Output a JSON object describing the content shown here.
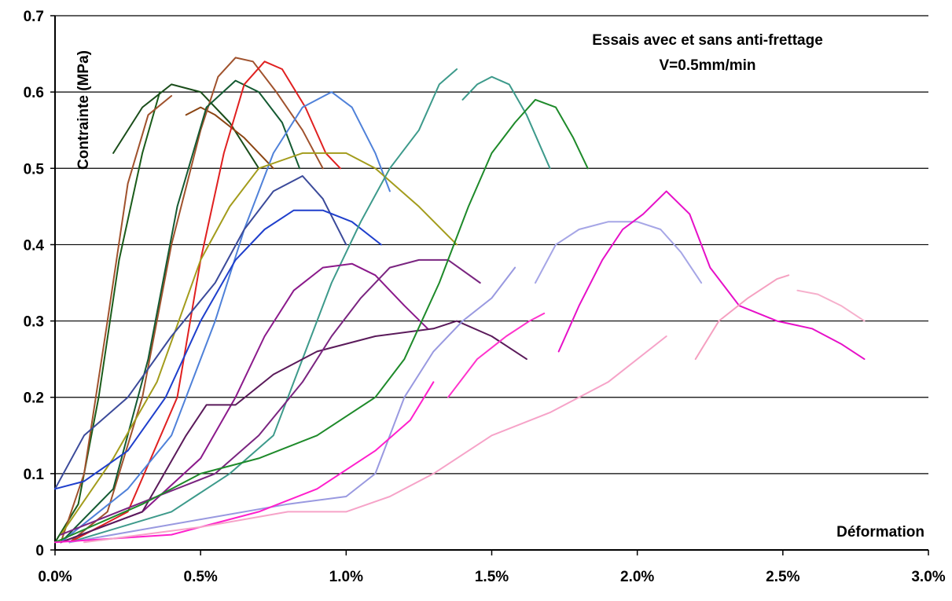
{
  "chart_data": {
    "type": "line",
    "title": "Essais avec et sans anti-frettage",
    "subtitle": "V=0.5mm/min",
    "xlabel": "Déformation",
    "ylabel": "Contrainte (MPa)",
    "xlim": [
      0.0,
      3.0
    ],
    "ylim": [
      0.0,
      0.7
    ],
    "x_unit": "%",
    "grid": "horizontal",
    "legend": "none",
    "x_ticks": [
      {
        "value": 0.0,
        "label": "0.0%"
      },
      {
        "value": 0.5,
        "label": "0.5%"
      },
      {
        "value": 1.0,
        "label": "1.0%"
      },
      {
        "value": 1.5,
        "label": "1.5%"
      },
      {
        "value": 2.0,
        "label": "2.0%"
      },
      {
        "value": 2.5,
        "label": "2.5%"
      },
      {
        "value": 3.0,
        "label": "3.0%"
      }
    ],
    "y_ticks": [
      {
        "value": 0.0,
        "label": "0"
      },
      {
        "value": 0.1,
        "label": "0.1"
      },
      {
        "value": 0.2,
        "label": "0.2"
      },
      {
        "value": 0.3,
        "label": "0.3"
      },
      {
        "value": 0.4,
        "label": "0.4"
      },
      {
        "value": 0.5,
        "label": "0.5"
      },
      {
        "value": 0.6,
        "label": "0.6"
      },
      {
        "value": 0.7,
        "label": "0.7"
      }
    ],
    "series": [
      {
        "color": "#1a5c1a",
        "points": [
          [
            0,
            0.01
          ],
          [
            0.08,
            0.06
          ],
          [
            0.15,
            0.2
          ],
          [
            0.22,
            0.38
          ],
          [
            0.3,
            0.52
          ],
          [
            0.36,
            0.6
          ]
        ]
      },
      {
        "color": "#1a4d1a",
        "points": [
          [
            0.2,
            0.52
          ],
          [
            0.3,
            0.58
          ],
          [
            0.4,
            0.61
          ],
          [
            0.5,
            0.6
          ],
          [
            0.6,
            0.56
          ],
          [
            0.7,
            0.5
          ]
        ]
      },
      {
        "color": "#a0522d",
        "points": [
          [
            0.02,
            0.01
          ],
          [
            0.1,
            0.1
          ],
          [
            0.18,
            0.3
          ],
          [
            0.25,
            0.48
          ],
          [
            0.32,
            0.57
          ],
          [
            0.4,
            0.595
          ]
        ]
      },
      {
        "color": "#8b4513",
        "points": [
          [
            0.45,
            0.57
          ],
          [
            0.5,
            0.58
          ],
          [
            0.55,
            0.57
          ],
          [
            0.65,
            0.54
          ],
          [
            0.75,
            0.5
          ]
        ]
      },
      {
        "color": "#a0522d",
        "points": [
          [
            0.05,
            0.01
          ],
          [
            0.18,
            0.05
          ],
          [
            0.3,
            0.2
          ],
          [
            0.4,
            0.4
          ],
          [
            0.5,
            0.55
          ],
          [
            0.56,
            0.62
          ],
          [
            0.62,
            0.645
          ],
          [
            0.68,
            0.64
          ],
          [
            0.76,
            0.6
          ],
          [
            0.85,
            0.55
          ],
          [
            0.92,
            0.5
          ]
        ]
      },
      {
        "color": "#145a32",
        "points": [
          [
            0.02,
            0.01
          ],
          [
            0.2,
            0.08
          ],
          [
            0.32,
            0.25
          ],
          [
            0.42,
            0.45
          ],
          [
            0.52,
            0.58
          ],
          [
            0.62,
            0.615
          ],
          [
            0.7,
            0.6
          ],
          [
            0.78,
            0.56
          ],
          [
            0.84,
            0.5
          ]
        ]
      },
      {
        "color": "#e02020",
        "points": [
          [
            0.05,
            0.01
          ],
          [
            0.25,
            0.05
          ],
          [
            0.42,
            0.2
          ],
          [
            0.5,
            0.38
          ],
          [
            0.58,
            0.52
          ],
          [
            0.65,
            0.61
          ],
          [
            0.72,
            0.64
          ],
          [
            0.78,
            0.63
          ],
          [
            0.86,
            0.58
          ],
          [
            0.93,
            0.52
          ],
          [
            0.98,
            0.5
          ]
        ]
      },
      {
        "color": "#4f81d9",
        "points": [
          [
            0.02,
            0.01
          ],
          [
            0.25,
            0.08
          ],
          [
            0.4,
            0.15
          ],
          [
            0.55,
            0.3
          ],
          [
            0.65,
            0.42
          ],
          [
            0.75,
            0.52
          ],
          [
            0.85,
            0.58
          ],
          [
            0.95,
            0.6
          ],
          [
            1.02,
            0.58
          ],
          [
            1.1,
            0.52
          ],
          [
            1.15,
            0.47
          ]
        ]
      },
      {
        "color": "#a39c1c",
        "points": [
          [
            0.02,
            0.02
          ],
          [
            0.2,
            0.12
          ],
          [
            0.35,
            0.22
          ],
          [
            0.5,
            0.38
          ],
          [
            0.6,
            0.45
          ],
          [
            0.7,
            0.5
          ],
          [
            0.85,
            0.52
          ],
          [
            1.0,
            0.52
          ],
          [
            1.1,
            0.5
          ],
          [
            1.25,
            0.45
          ],
          [
            1.38,
            0.4
          ]
        ]
      },
      {
        "color": "#3b4a9a",
        "points": [
          [
            0.0,
            0.08
          ],
          [
            0.1,
            0.15
          ],
          [
            0.25,
            0.2
          ],
          [
            0.4,
            0.28
          ],
          [
            0.55,
            0.35
          ],
          [
            0.65,
            0.42
          ],
          [
            0.75,
            0.47
          ],
          [
            0.85,
            0.49
          ],
          [
            0.92,
            0.46
          ],
          [
            1.0,
            0.4
          ]
        ]
      },
      {
        "color": "#1f3fcc",
        "points": [
          [
            0.0,
            0.08
          ],
          [
            0.1,
            0.09
          ],
          [
            0.25,
            0.13
          ],
          [
            0.38,
            0.2
          ],
          [
            0.5,
            0.3
          ],
          [
            0.62,
            0.38
          ],
          [
            0.72,
            0.42
          ],
          [
            0.82,
            0.445
          ],
          [
            0.92,
            0.445
          ],
          [
            1.02,
            0.43
          ],
          [
            1.12,
            0.4
          ]
        ]
      },
      {
        "color": "#3d9a8b",
        "points": [
          [
            0.05,
            0.01
          ],
          [
            0.4,
            0.05
          ],
          [
            0.6,
            0.1
          ],
          [
            0.75,
            0.15
          ],
          [
            0.85,
            0.25
          ],
          [
            0.95,
            0.35
          ],
          [
            1.05,
            0.43
          ],
          [
            1.15,
            0.5
          ],
          [
            1.25,
            0.55
          ],
          [
            1.32,
            0.61
          ],
          [
            1.38,
            0.63
          ]
        ]
      },
      {
        "color": "#3d9a8b",
        "points": [
          [
            1.4,
            0.59
          ],
          [
            1.45,
            0.61
          ],
          [
            1.5,
            0.62
          ],
          [
            1.56,
            0.61
          ],
          [
            1.62,
            0.57
          ],
          [
            1.7,
            0.5
          ]
        ]
      },
      {
        "color": "#8b1a8b",
        "points": [
          [
            0.02,
            0.01
          ],
          [
            0.3,
            0.05
          ],
          [
            0.5,
            0.12
          ],
          [
            0.62,
            0.2
          ],
          [
            0.72,
            0.28
          ],
          [
            0.82,
            0.34
          ],
          [
            0.92,
            0.37
          ],
          [
            1.02,
            0.375
          ],
          [
            1.1,
            0.36
          ],
          [
            1.2,
            0.32
          ],
          [
            1.28,
            0.29
          ]
        ]
      },
      {
        "color": "#5a1a5a",
        "points": [
          [
            0.02,
            0.01
          ],
          [
            0.3,
            0.05
          ],
          [
            0.45,
            0.15
          ],
          [
            0.52,
            0.19
          ],
          [
            0.62,
            0.19
          ],
          [
            0.75,
            0.23
          ],
          [
            0.9,
            0.26
          ],
          [
            1.1,
            0.28
          ],
          [
            1.3,
            0.29
          ],
          [
            1.38,
            0.3
          ],
          [
            1.5,
            0.28
          ],
          [
            1.62,
            0.25
          ]
        ]
      },
      {
        "color": "#7a2580",
        "points": [
          [
            0.02,
            0.02
          ],
          [
            0.35,
            0.07
          ],
          [
            0.55,
            0.1
          ],
          [
            0.7,
            0.15
          ],
          [
            0.85,
            0.22
          ],
          [
            0.95,
            0.28
          ],
          [
            1.05,
            0.33
          ],
          [
            1.15,
            0.37
          ],
          [
            1.25,
            0.38
          ],
          [
            1.35,
            0.38
          ],
          [
            1.46,
            0.35
          ]
        ]
      },
      {
        "color": "#1e8a2a",
        "points": [
          [
            0.0,
            0.01
          ],
          [
            0.3,
            0.06
          ],
          [
            0.5,
            0.1
          ],
          [
            0.7,
            0.12
          ],
          [
            0.9,
            0.15
          ],
          [
            1.1,
            0.2
          ],
          [
            1.2,
            0.25
          ],
          [
            1.32,
            0.35
          ],
          [
            1.42,
            0.45
          ],
          [
            1.5,
            0.52
          ],
          [
            1.58,
            0.56
          ],
          [
            1.65,
            0.59
          ],
          [
            1.72,
            0.58
          ],
          [
            1.78,
            0.54
          ],
          [
            1.83,
            0.5
          ]
        ]
      },
      {
        "color": "#9999e0",
        "points": [
          [
            0.05,
            0.01
          ],
          [
            0.5,
            0.04
          ],
          [
            0.8,
            0.06
          ],
          [
            1.0,
            0.07
          ],
          [
            1.1,
            0.1
          ],
          [
            1.2,
            0.2
          ],
          [
            1.3,
            0.26
          ],
          [
            1.4,
            0.3
          ],
          [
            1.5,
            0.33
          ],
          [
            1.58,
            0.37
          ]
        ]
      },
      {
        "color": "#a6a6e6",
        "points": [
          [
            1.65,
            0.35
          ],
          [
            1.72,
            0.4
          ],
          [
            1.8,
            0.42
          ],
          [
            1.9,
            0.43
          ],
          [
            2.0,
            0.43
          ],
          [
            2.08,
            0.42
          ],
          [
            2.15,
            0.39
          ],
          [
            2.22,
            0.35
          ]
        ]
      },
      {
        "color": "#ff1fcc",
        "points": [
          [
            0.0,
            0.01
          ],
          [
            0.4,
            0.02
          ],
          [
            0.7,
            0.05
          ],
          [
            0.9,
            0.08
          ],
          [
            1.1,
            0.13
          ],
          [
            1.22,
            0.17
          ],
          [
            1.3,
            0.22
          ]
        ]
      },
      {
        "color": "#ff33cc",
        "points": [
          [
            1.35,
            0.2
          ],
          [
            1.45,
            0.25
          ],
          [
            1.55,
            0.28
          ],
          [
            1.63,
            0.3
          ],
          [
            1.68,
            0.31
          ]
        ]
      },
      {
        "color": "#e610c8",
        "points": [
          [
            1.73,
            0.26
          ],
          [
            1.8,
            0.32
          ],
          [
            1.88,
            0.38
          ],
          [
            1.95,
            0.42
          ],
          [
            2.02,
            0.44
          ],
          [
            2.1,
            0.47
          ],
          [
            2.18,
            0.44
          ],
          [
            2.25,
            0.37
          ],
          [
            2.35,
            0.32
          ],
          [
            2.48,
            0.3
          ],
          [
            2.6,
            0.29
          ],
          [
            2.7,
            0.27
          ],
          [
            2.78,
            0.25
          ]
        ]
      },
      {
        "color": "#f6a3c8",
        "points": [
          [
            0.1,
            0.01
          ],
          [
            0.5,
            0.03
          ],
          [
            0.8,
            0.05
          ],
          [
            1.0,
            0.05
          ],
          [
            1.15,
            0.07
          ],
          [
            1.3,
            0.1
          ],
          [
            1.5,
            0.15
          ],
          [
            1.7,
            0.18
          ],
          [
            1.9,
            0.22
          ],
          [
            2.1,
            0.28
          ]
        ]
      },
      {
        "color": "#f5a0c0",
        "points": [
          [
            2.2,
            0.25
          ],
          [
            2.28,
            0.3
          ],
          [
            2.38,
            0.33
          ],
          [
            2.48,
            0.355
          ],
          [
            2.52,
            0.36
          ]
        ]
      },
      {
        "color": "#f6b0cc",
        "points": [
          [
            2.55,
            0.34
          ],
          [
            2.62,
            0.335
          ],
          [
            2.7,
            0.32
          ],
          [
            2.78,
            0.3
          ]
        ]
      }
    ]
  }
}
